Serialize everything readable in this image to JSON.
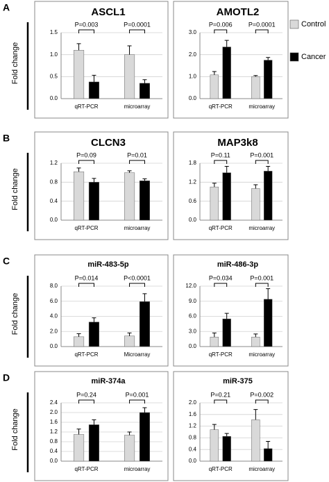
{
  "panels": [
    {
      "label": "A",
      "y_label": "Fold change"
    },
    {
      "label": "B",
      "y_label": "Fold change"
    },
    {
      "label": "C",
      "y_label": "Fold change"
    },
    {
      "label": "D",
      "y_label": "Fold change"
    }
  ],
  "legend": [
    {
      "name": "Control",
      "color": "#d9d9d9"
    },
    {
      "name": "Cancer",
      "color": "#000000"
    }
  ],
  "chart_data": [
    {
      "type": "bar",
      "title": "ASCL1",
      "categories": [
        "qRT-PCR",
        "microarray"
      ],
      "annotations": [
        "P=0.003",
        "P=0.0001"
      ],
      "ylim": [
        0,
        1.5
      ],
      "yticks": [
        {
          "value": 0,
          "label": "0.0"
        },
        0.5,
        {
          "value": 1,
          "label": "1.0"
        },
        1.5
      ],
      "series": [
        {
          "color": "#d9d9d9",
          "values": [
            1.1,
            1.0
          ],
          "errors": [
            0.15,
            0.2
          ]
        },
        {
          "color": "#000000",
          "values": [
            0.38,
            0.35
          ],
          "errors": [
            0.15,
            0.08
          ]
        }
      ]
    },
    {
      "type": "bar",
      "title": "AMOTL2",
      "categories": [
        "qRT-PCR",
        "microarray"
      ],
      "annotations": [
        "P=0.006",
        "P=0.0001"
      ],
      "ylim": [
        0,
        3
      ],
      "yticks": [
        {
          "value": 0,
          "label": "0.0"
        },
        {
          "value": 1,
          "label": "1.0"
        },
        {
          "value": 2,
          "label": "2.0"
        },
        {
          "value": 3,
          "label": "3.0"
        }
      ],
      "series": [
        {
          "color": "#d9d9d9",
          "values": [
            1.08,
            1.0
          ],
          "errors": [
            0.15,
            0.05
          ]
        },
        {
          "color": "#000000",
          "values": [
            2.35,
            1.75
          ],
          "errors": [
            0.3,
            0.12
          ]
        }
      ]
    },
    {
      "type": "bar",
      "title": "CLCN3",
      "categories": [
        "qRT-PCR",
        "microarray"
      ],
      "annotations": [
        "P=0.09",
        "P=0.01"
      ],
      "ylim": [
        0,
        1.2
      ],
      "yticks": [
        {
          "value": 0,
          "label": "0.0"
        },
        0.4,
        0.8,
        1.2
      ],
      "series": [
        {
          "color": "#d9d9d9",
          "values": [
            1.02,
            1.0
          ],
          "errors": [
            0.08,
            0.04
          ]
        },
        {
          "color": "#000000",
          "values": [
            0.8,
            0.83
          ],
          "errors": [
            0.08,
            0.04
          ]
        }
      ]
    },
    {
      "type": "bar",
      "title": "MAP3k8",
      "categories": [
        "qRT-PCR",
        "microarray"
      ],
      "annotations": [
        "P=0.11",
        "P=0.001"
      ],
      "ylim": [
        0,
        1.8
      ],
      "yticks": [
        {
          "value": 0,
          "label": "0.0"
        },
        0.6,
        1.2,
        1.8
      ],
      "series": [
        {
          "color": "#d9d9d9",
          "values": [
            1.05,
            1.0
          ],
          "errors": [
            0.12,
            0.12
          ]
        },
        {
          "color": "#000000",
          "values": [
            1.5,
            1.55
          ],
          "errors": [
            0.2,
            0.15
          ]
        }
      ]
    },
    {
      "type": "bar",
      "title": "miR-483-5p",
      "categories": [
        "qRT-PCR",
        "Microarray"
      ],
      "annotations": [
        "P=0.014",
        "P<0.0001"
      ],
      "ylim": [
        0,
        8
      ],
      "yticks": [
        {
          "value": 0,
          "label": "0.0"
        },
        {
          "value": 2,
          "label": "2.0"
        },
        {
          "value": 4,
          "label": "4.0"
        },
        {
          "value": 6,
          "label": "6.0"
        },
        {
          "value": 8,
          "label": "8.0"
        }
      ],
      "series": [
        {
          "color": "#d9d9d9",
          "values": [
            1.3,
            1.4
          ],
          "errors": [
            0.4,
            0.4
          ]
        },
        {
          "color": "#000000",
          "values": [
            3.25,
            5.95
          ],
          "errors": [
            0.55,
            1.05
          ]
        }
      ]
    },
    {
      "type": "bar",
      "title": "miR-486-3p",
      "categories": [
        "qRT-PCR",
        "microarray"
      ],
      "annotations": [
        "P=0.034",
        "P=0.001"
      ],
      "ylim": [
        0,
        12
      ],
      "yticks": [
        {
          "value": 0,
          "label": "0.0"
        },
        {
          "value": 3,
          "label": "3.0"
        },
        {
          "value": 6,
          "label": "6.0"
        },
        {
          "value": 9,
          "label": "9.0"
        },
        {
          "value": 12,
          "label": "12.0"
        }
      ],
      "series": [
        {
          "color": "#d9d9d9",
          "values": [
            1.9,
            1.9
          ],
          "errors": [
            0.8,
            0.6
          ]
        },
        {
          "color": "#000000",
          "values": [
            5.5,
            9.4
          ],
          "errors": [
            1.1,
            2.1
          ]
        }
      ]
    },
    {
      "type": "bar",
      "title": "miR-374a",
      "categories": [
        "qRT-PCR",
        "microarray"
      ],
      "annotations": [
        "P=0.24",
        "P=0.001"
      ],
      "ylim": [
        0,
        2.4
      ],
      "yticks": [
        {
          "value": 0,
          "label": "0.0"
        },
        0.4,
        0.8,
        1.2,
        1.6,
        {
          "value": 2,
          "label": "2.0"
        },
        2.4
      ],
      "series": [
        {
          "color": "#d9d9d9",
          "values": [
            1.1,
            1.07
          ],
          "errors": [
            0.22,
            0.13
          ]
        },
        {
          "color": "#000000",
          "values": [
            1.5,
            2.0
          ],
          "errors": [
            0.2,
            0.2
          ]
        }
      ]
    },
    {
      "type": "bar",
      "title": "miR-375",
      "categories": [
        "qRT-PCR",
        "microarray"
      ],
      "annotations": [
        "P=0.21",
        "P=0.002"
      ],
      "ylim": [
        0,
        2
      ],
      "yticks": [
        {
          "value": 0,
          "label": "0.0"
        },
        0.4,
        0.8,
        1.2,
        1.6,
        {
          "value": 2,
          "label": "2.0"
        }
      ],
      "series": [
        {
          "color": "#d9d9d9",
          "values": [
            1.08,
            1.42
          ],
          "errors": [
            0.18,
            0.35
          ]
        },
        {
          "color": "#000000",
          "values": [
            0.85,
            0.43
          ],
          "errors": [
            0.1,
            0.25
          ]
        }
      ]
    }
  ]
}
